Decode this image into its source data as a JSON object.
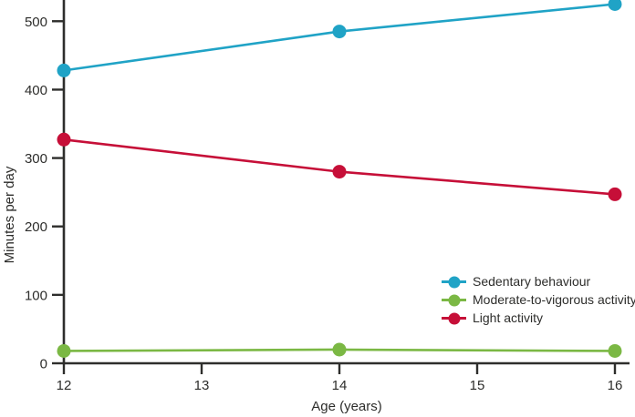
{
  "chart_data": {
    "type": "line",
    "x": [
      12,
      14,
      16
    ],
    "series": [
      {
        "name": "Sedentary behaviour",
        "color": "#20a3c6",
        "values": [
          428,
          485,
          525
        ]
      },
      {
        "name": "Moderate-to-vigorous activity",
        "color": "#7bb844",
        "values": [
          18,
          20,
          18
        ]
      },
      {
        "name": "Light activity",
        "color": "#c60f38",
        "values": [
          327,
          280,
          247
        ]
      }
    ],
    "title": "",
    "xlabel": "Age (years)",
    "ylabel": "Minutes per day",
    "xticks": [
      12,
      13,
      14,
      15,
      16
    ],
    "yticks": [
      0,
      100,
      200,
      300,
      400,
      500
    ],
    "xlim": [
      12,
      16.1
    ],
    "ylim": [
      0,
      531
    ],
    "grid": false,
    "legend_position": "lower right",
    "legend_entries": [
      "Sedentary behaviour",
      "Moderate-to-vigorous activity",
      "Light activity"
    ],
    "axis_color": "#2e2e2c",
    "text_color": "#2d2d2b",
    "marker": "circle"
  }
}
